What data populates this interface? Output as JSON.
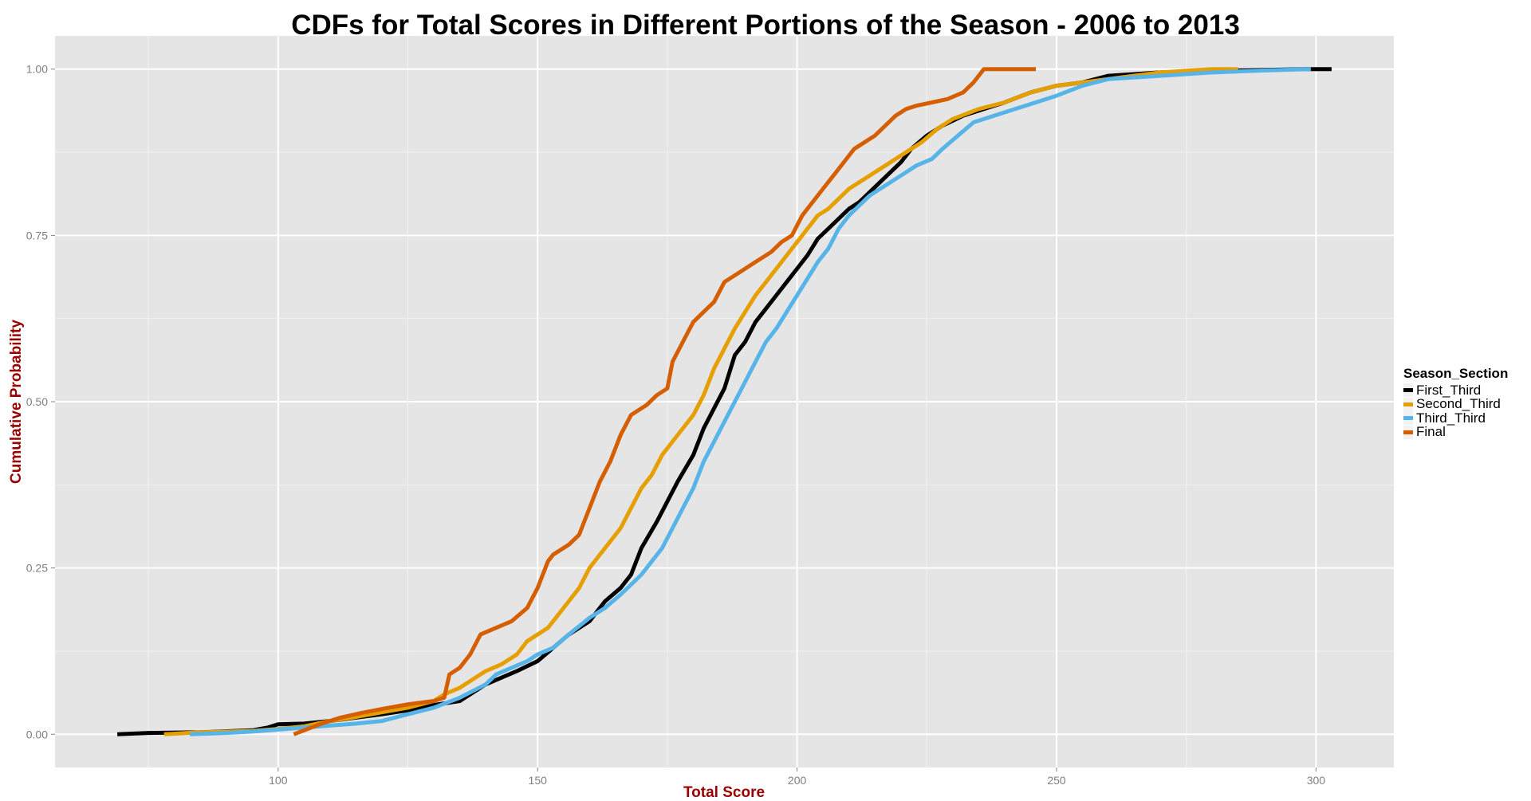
{
  "chart_data": {
    "type": "line",
    "title": "CDFs for Total Scores in Different Portions of the Season - 2006 to 2013",
    "xlabel": "Total Score",
    "ylabel": "Cumulative Probability",
    "xlim": [
      57,
      315
    ],
    "ylim": [
      -0.05,
      1.05
    ],
    "x_ticks": [
      "100",
      "150",
      "200",
      "250",
      "300"
    ],
    "y_ticks": [
      "0.00",
      "0.25",
      "0.50",
      "0.75",
      "1.00"
    ],
    "grid": true,
    "legend_position": "right",
    "legend_title": "Season_Section",
    "series": [
      {
        "name": "First_Third",
        "color": "#000000",
        "points": [
          [
            69,
            0
          ],
          [
            75,
            0.002
          ],
          [
            85,
            0.003
          ],
          [
            95,
            0.006
          ],
          [
            98,
            0.01
          ],
          [
            100,
            0.015
          ],
          [
            105,
            0.016
          ],
          [
            110,
            0.02
          ],
          [
            115,
            0.025
          ],
          [
            120,
            0.03
          ],
          [
            125,
            0.036
          ],
          [
            130,
            0.044
          ],
          [
            135,
            0.05
          ],
          [
            140,
            0.075
          ],
          [
            143,
            0.085
          ],
          [
            146,
            0.095
          ],
          [
            150,
            0.11
          ],
          [
            153,
            0.13
          ],
          [
            156,
            0.15
          ],
          [
            160,
            0.17
          ],
          [
            163,
            0.2
          ],
          [
            166,
            0.22
          ],
          [
            168,
            0.24
          ],
          [
            170,
            0.28
          ],
          [
            173,
            0.32
          ],
          [
            175,
            0.35
          ],
          [
            177,
            0.38
          ],
          [
            180,
            0.42
          ],
          [
            182,
            0.46
          ],
          [
            184,
            0.49
          ],
          [
            186,
            0.52
          ],
          [
            188,
            0.57
          ],
          [
            190,
            0.59
          ],
          [
            192,
            0.62
          ],
          [
            194,
            0.64
          ],
          [
            196,
            0.66
          ],
          [
            198,
            0.68
          ],
          [
            200,
            0.7
          ],
          [
            202,
            0.72
          ],
          [
            204,
            0.745
          ],
          [
            206,
            0.76
          ],
          [
            208,
            0.775
          ],
          [
            210,
            0.79
          ],
          [
            212,
            0.8
          ],
          [
            214,
            0.815
          ],
          [
            216,
            0.83
          ],
          [
            218,
            0.845
          ],
          [
            220,
            0.86
          ],
          [
            222,
            0.88
          ],
          [
            225,
            0.9
          ],
          [
            228,
            0.915
          ],
          [
            232,
            0.93
          ],
          [
            236,
            0.94
          ],
          [
            240,
            0.95
          ],
          [
            245,
            0.965
          ],
          [
            250,
            0.975
          ],
          [
            255,
            0.98
          ],
          [
            260,
            0.99
          ],
          [
            270,
            0.995
          ],
          [
            285,
            0.998
          ],
          [
            298,
            1
          ],
          [
            303,
            1
          ]
        ]
      },
      {
        "name": "Second_Third",
        "color": "#E69F00",
        "points": [
          [
            78,
            0
          ],
          [
            85,
            0.003
          ],
          [
            95,
            0.005
          ],
          [
            100,
            0.008
          ],
          [
            105,
            0.012
          ],
          [
            110,
            0.02
          ],
          [
            115,
            0.026
          ],
          [
            120,
            0.033
          ],
          [
            125,
            0.04
          ],
          [
            130,
            0.05
          ],
          [
            132,
            0.06
          ],
          [
            135,
            0.07
          ],
          [
            138,
            0.085
          ],
          [
            140,
            0.095
          ],
          [
            143,
            0.105
          ],
          [
            146,
            0.12
          ],
          [
            148,
            0.14
          ],
          [
            150,
            0.15
          ],
          [
            152,
            0.16
          ],
          [
            154,
            0.18
          ],
          [
            156,
            0.2
          ],
          [
            158,
            0.22
          ],
          [
            160,
            0.25
          ],
          [
            162,
            0.27
          ],
          [
            164,
            0.29
          ],
          [
            166,
            0.31
          ],
          [
            168,
            0.34
          ],
          [
            170,
            0.37
          ],
          [
            172,
            0.39
          ],
          [
            174,
            0.42
          ],
          [
            176,
            0.44
          ],
          [
            178,
            0.46
          ],
          [
            180,
            0.48
          ],
          [
            182,
            0.51
          ],
          [
            184,
            0.55
          ],
          [
            186,
            0.58
          ],
          [
            188,
            0.61
          ],
          [
            190,
            0.635
          ],
          [
            192,
            0.66
          ],
          [
            194,
            0.68
          ],
          [
            196,
            0.7
          ],
          [
            198,
            0.72
          ],
          [
            200,
            0.74
          ],
          [
            202,
            0.76
          ],
          [
            204,
            0.78
          ],
          [
            206,
            0.79
          ],
          [
            208,
            0.805
          ],
          [
            210,
            0.82
          ],
          [
            212,
            0.83
          ],
          [
            215,
            0.845
          ],
          [
            218,
            0.86
          ],
          [
            221,
            0.875
          ],
          [
            224,
            0.89
          ],
          [
            227,
            0.91
          ],
          [
            230,
            0.925
          ],
          [
            235,
            0.94
          ],
          [
            240,
            0.95
          ],
          [
            245,
            0.965
          ],
          [
            250,
            0.975
          ],
          [
            255,
            0.98
          ],
          [
            260,
            0.985
          ],
          [
            270,
            0.995
          ],
          [
            280,
            1
          ],
          [
            285,
            1
          ]
        ]
      },
      {
        "name": "Third_Third",
        "color": "#56B4E9",
        "points": [
          [
            83,
            0
          ],
          [
            90,
            0.002
          ],
          [
            95,
            0.004
          ],
          [
            100,
            0.007
          ],
          [
            105,
            0.01
          ],
          [
            110,
            0.013
          ],
          [
            115,
            0.016
          ],
          [
            120,
            0.02
          ],
          [
            125,
            0.03
          ],
          [
            130,
            0.04
          ],
          [
            135,
            0.055
          ],
          [
            140,
            0.075
          ],
          [
            142,
            0.09
          ],
          [
            145,
            0.1
          ],
          [
            148,
            0.11
          ],
          [
            150,
            0.12
          ],
          [
            153,
            0.13
          ],
          [
            156,
            0.15
          ],
          [
            160,
            0.175
          ],
          [
            163,
            0.19
          ],
          [
            166,
            0.21
          ],
          [
            168,
            0.225
          ],
          [
            170,
            0.24
          ],
          [
            172,
            0.26
          ],
          [
            174,
            0.28
          ],
          [
            176,
            0.31
          ],
          [
            178,
            0.34
          ],
          [
            180,
            0.37
          ],
          [
            182,
            0.41
          ],
          [
            184,
            0.44
          ],
          [
            186,
            0.47
          ],
          [
            188,
            0.5
          ],
          [
            190,
            0.53
          ],
          [
            192,
            0.56
          ],
          [
            194,
            0.59
          ],
          [
            196,
            0.61
          ],
          [
            198,
            0.635
          ],
          [
            200,
            0.66
          ],
          [
            202,
            0.685
          ],
          [
            204,
            0.71
          ],
          [
            206,
            0.73
          ],
          [
            208,
            0.76
          ],
          [
            210,
            0.78
          ],
          [
            212,
            0.795
          ],
          [
            214,
            0.81
          ],
          [
            217,
            0.825
          ],
          [
            220,
            0.84
          ],
          [
            223,
            0.855
          ],
          [
            226,
            0.865
          ],
          [
            228,
            0.88
          ],
          [
            231,
            0.9
          ],
          [
            234,
            0.92
          ],
          [
            238,
            0.93
          ],
          [
            242,
            0.94
          ],
          [
            246,
            0.95
          ],
          [
            250,
            0.96
          ],
          [
            255,
            0.975
          ],
          [
            260,
            0.985
          ],
          [
            270,
            0.99
          ],
          [
            280,
            0.995
          ],
          [
            290,
            0.998
          ],
          [
            299,
            1
          ]
        ]
      },
      {
        "name": "Final",
        "color": "#D55E00",
        "points": [
          [
            103,
            0
          ],
          [
            108,
            0.015
          ],
          [
            112,
            0.025
          ],
          [
            116,
            0.032
          ],
          [
            120,
            0.038
          ],
          [
            125,
            0.045
          ],
          [
            130,
            0.05
          ],
          [
            132,
            0.055
          ],
          [
            133,
            0.09
          ],
          [
            135,
            0.1
          ],
          [
            137,
            0.12
          ],
          [
            139,
            0.15
          ],
          [
            142,
            0.16
          ],
          [
            145,
            0.17
          ],
          [
            148,
            0.19
          ],
          [
            150,
            0.22
          ],
          [
            152,
            0.26
          ],
          [
            153,
            0.27
          ],
          [
            156,
            0.285
          ],
          [
            158,
            0.3
          ],
          [
            160,
            0.34
          ],
          [
            162,
            0.38
          ],
          [
            164,
            0.41
          ],
          [
            166,
            0.45
          ],
          [
            168,
            0.48
          ],
          [
            171,
            0.495
          ],
          [
            173,
            0.51
          ],
          [
            175,
            0.52
          ],
          [
            176,
            0.56
          ],
          [
            178,
            0.59
          ],
          [
            180,
            0.62
          ],
          [
            182,
            0.635
          ],
          [
            184,
            0.65
          ],
          [
            186,
            0.68
          ],
          [
            189,
            0.695
          ],
          [
            192,
            0.71
          ],
          [
            195,
            0.725
          ],
          [
            197,
            0.74
          ],
          [
            199,
            0.75
          ],
          [
            201,
            0.78
          ],
          [
            203,
            0.8
          ],
          [
            205,
            0.82
          ],
          [
            207,
            0.84
          ],
          [
            209,
            0.86
          ],
          [
            211,
            0.88
          ],
          [
            213,
            0.89
          ],
          [
            215,
            0.9
          ],
          [
            217,
            0.915
          ],
          [
            219,
            0.93
          ],
          [
            221,
            0.94
          ],
          [
            223,
            0.945
          ],
          [
            226,
            0.95
          ],
          [
            229,
            0.955
          ],
          [
            232,
            0.965
          ],
          [
            234,
            0.98
          ],
          [
            236,
            1
          ],
          [
            246,
            1
          ]
        ]
      }
    ]
  }
}
